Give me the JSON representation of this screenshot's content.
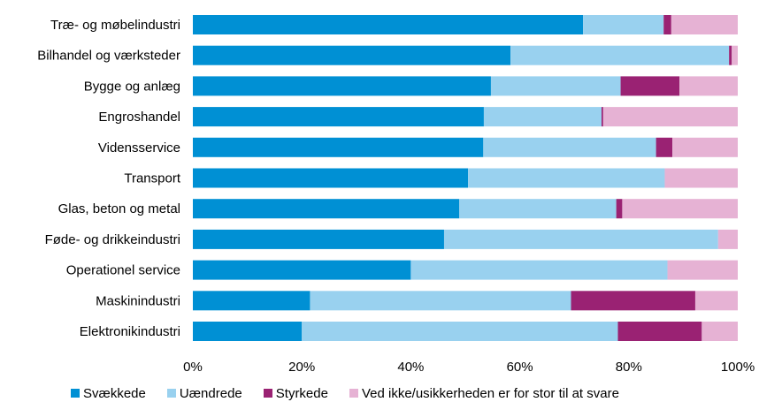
{
  "chart_data": {
    "type": "bar",
    "orientation": "horizontal",
    "stacked": "percent",
    "categories": [
      "Træ- og møbelindustri",
      "Bilhandel og værksteder",
      "Bygge og anlæg",
      "Engroshandel",
      "Vidensservice",
      "Transport",
      "Glas, beton og metal",
      "Føde- og drikkeindustri",
      "Operationel service",
      "Maskinindustri",
      "Elektronikindustri"
    ],
    "series": [
      {
        "name": "Svækkede",
        "color": "#0090d4",
        "values": [
          71.6,
          58.3,
          54.7,
          53.4,
          53.3,
          50.5,
          48.9,
          46.1,
          40.0,
          21.5,
          20.0
        ]
      },
      {
        "name": "Uændrede",
        "color": "#99d1ef",
        "values": [
          14.8,
          40.1,
          23.8,
          21.6,
          31.7,
          36.1,
          28.8,
          50.3,
          47.1,
          47.9,
          58.0
        ]
      },
      {
        "name": "Styrkede",
        "color": "#9a2273",
        "values": [
          1.4,
          0.5,
          10.8,
          0.3,
          3.0,
          0.0,
          1.1,
          0.0,
          0.0,
          22.8,
          15.4
        ]
      },
      {
        "name": "Ved ikke/usikkerheden er for stor til at svare",
        "color": "#e6b2d4",
        "values": [
          12.2,
          1.1,
          10.7,
          24.7,
          12.0,
          13.4,
          21.2,
          3.6,
          12.9,
          7.8,
          6.6
        ]
      }
    ],
    "xlim": [
      0,
      100
    ],
    "xticks": [
      "0%",
      "20%",
      "40%",
      "60%",
      "80%",
      "100%"
    ],
    "grid": false,
    "legend_position": "bottom"
  }
}
